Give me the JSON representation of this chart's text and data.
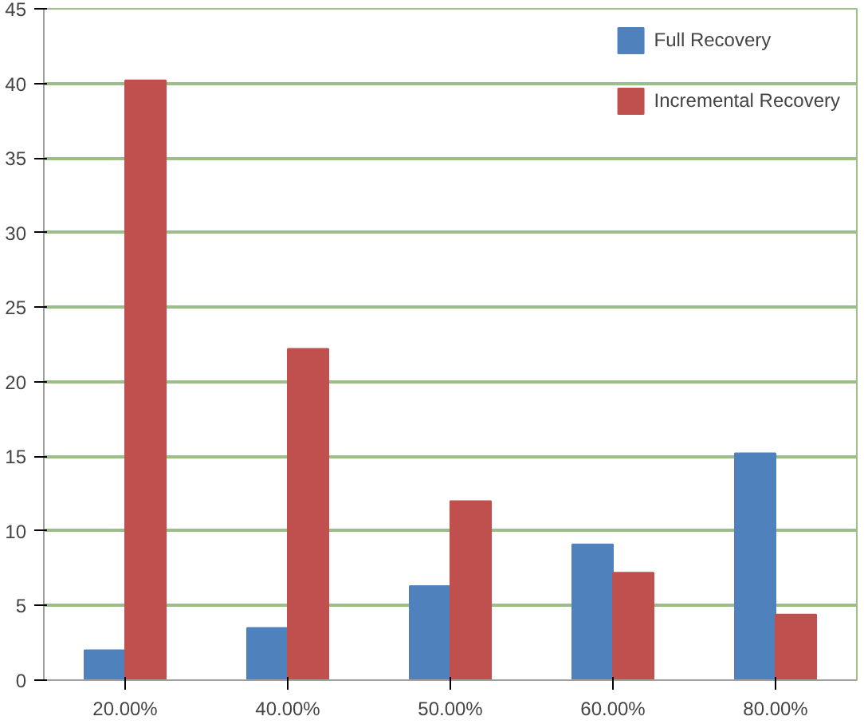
{
  "chart_data": {
    "type": "bar",
    "categories": [
      "20.00%",
      "40.00%",
      "50.00%",
      "60.00%",
      "80.00%"
    ],
    "series": [
      {
        "name": "Full Recovery",
        "color": "#4f81bd",
        "values": [
          2,
          3.5,
          6.3,
          9.1,
          15.2
        ]
      },
      {
        "name": "Incremental Recovery",
        "color": "#c0504d",
        "values": [
          40.2,
          22.2,
          12,
          7.2,
          4.4
        ]
      }
    ],
    "ylim": [
      0,
      45
    ],
    "yticks": [
      0,
      5,
      10,
      15,
      20,
      25,
      30,
      35,
      40,
      45
    ],
    "grid": "y",
    "legend": "top right"
  }
}
